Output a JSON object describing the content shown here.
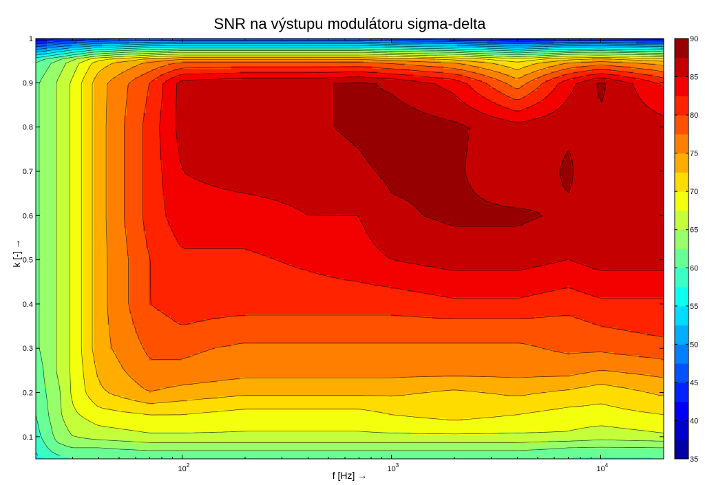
{
  "chart_data": {
    "type": "heatmap",
    "subtype": "filled-contour",
    "title": "SNR na výstupu modulátoru sigma-delta",
    "xlabel": "f [Hz] →",
    "ylabel": "k [-] →",
    "x_scale": "log",
    "xlim": [
      20,
      20000
    ],
    "ylim": [
      0.05,
      1
    ],
    "x_ticks": [
      {
        "value": 100,
        "base": "10",
        "exp": "2"
      },
      {
        "value": 1000,
        "base": "10",
        "exp": "3"
      },
      {
        "value": 10000,
        "base": "10",
        "exp": "4"
      }
    ],
    "y_ticks": [
      "0.1",
      "0.2",
      "0.3",
      "0.4",
      "0.5",
      "0.6",
      "0.7",
      "0.8",
      "0.9",
      "1"
    ],
    "colorbar": {
      "range": [
        35,
        90
      ],
      "ticks": [
        "35",
        "40",
        "45",
        "50",
        "55",
        "60",
        "65",
        "70",
        "75",
        "80",
        "85",
        "90"
      ],
      "colormap": "jet",
      "colors": [
        "#00008f",
        "#0000ff",
        "#0080ff",
        "#00ffff",
        "#80ff80",
        "#ffff00",
        "#ff8000",
        "#ff0000",
        "#800000"
      ]
    },
    "x": [
      20,
      25,
      30,
      40,
      70,
      100,
      200,
      400,
      700,
      1000,
      2000,
      4000,
      7000,
      10000,
      20000
    ],
    "y": [
      0.05,
      0.08,
      0.1,
      0.15,
      0.2,
      0.25,
      0.3,
      0.35,
      0.4,
      0.5,
      0.6,
      0.7,
      0.8,
      0.9,
      0.95,
      1.0
    ],
    "z": [
      [
        57,
        59,
        60,
        60,
        60,
        60,
        60,
        60,
        60,
        60,
        60,
        60,
        60,
        59,
        60
      ],
      [
        58,
        62,
        63,
        63,
        64,
        64,
        64,
        64,
        64,
        64,
        64,
        64,
        63,
        63,
        63
      ],
      [
        59,
        63,
        65,
        66,
        67,
        67,
        67,
        67,
        67,
        67,
        67,
        67,
        67,
        66,
        67
      ],
      [
        60,
        64,
        67,
        69,
        70,
        70,
        69,
        69,
        69,
        70,
        71,
        70,
        69,
        69,
        70
      ],
      [
        61,
        64,
        68,
        72,
        75,
        74,
        73,
        73,
        73,
        73,
        72,
        73,
        72,
        71,
        73
      ],
      [
        61,
        65,
        68,
        73,
        77,
        77,
        76,
        76,
        76,
        76,
        76,
        76,
        76,
        75,
        76
      ],
      [
        62,
        65,
        68,
        74,
        78,
        78,
        77,
        77,
        77,
        77,
        77,
        77,
        78,
        78,
        79
      ],
      [
        62,
        65,
        68,
        74,
        79,
        80,
        79,
        79,
        79,
        79,
        79,
        79,
        79,
        80,
        81
      ],
      [
        62,
        65,
        68,
        74,
        80,
        81,
        81,
        81,
        81,
        81,
        82,
        82,
        81,
        82,
        82
      ],
      [
        62,
        65,
        68,
        74,
        80,
        82,
        82,
        83,
        84,
        85,
        86,
        86,
        85,
        86,
        86
      ],
      [
        62,
        65,
        68,
        74,
        81,
        84,
        84,
        85,
        85,
        87,
        88,
        88,
        87,
        87,
        87
      ],
      [
        62,
        65,
        68,
        74,
        81,
        85,
        86,
        86,
        87,
        88,
        88,
        85,
        88,
        85,
        86
      ],
      [
        62,
        65,
        68,
        74,
        81,
        86,
        87,
        87,
        88,
        89,
        88,
        86,
        87,
        87,
        86
      ],
      [
        62,
        65,
        68,
        74,
        80,
        86,
        87,
        87,
        88,
        87,
        84,
        76,
        84,
        88,
        82
      ],
      [
        60,
        63,
        66,
        71,
        75,
        77,
        77,
        77,
        77,
        76,
        74,
        70,
        74,
        75,
        73
      ],
      [
        40,
        42,
        43,
        44,
        45,
        45,
        45,
        45,
        45,
        44,
        43,
        41,
        42,
        42,
        41
      ]
    ]
  }
}
